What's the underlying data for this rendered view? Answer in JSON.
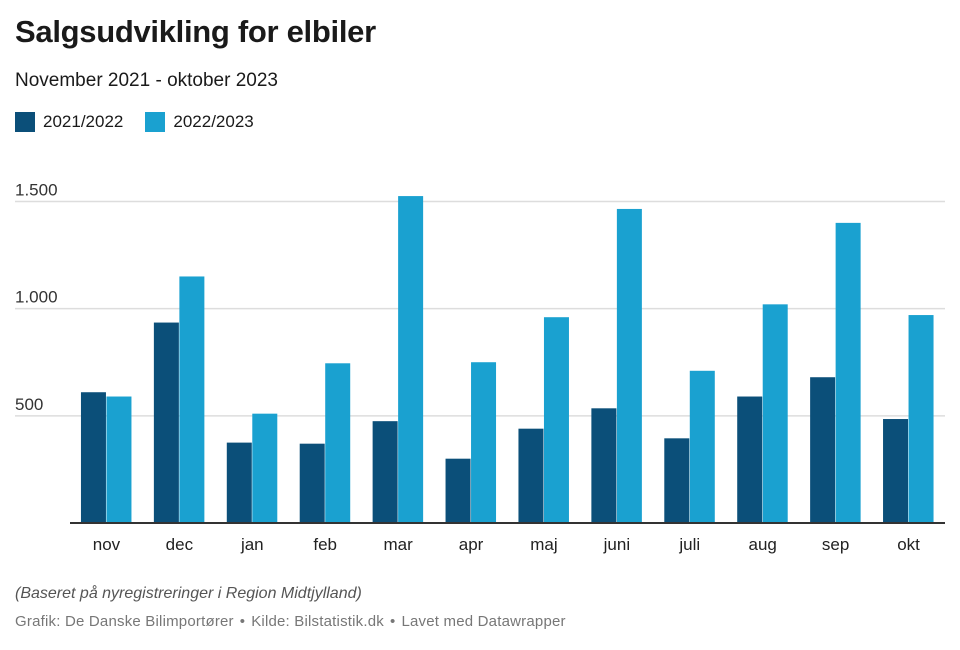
{
  "title": "Salgsudvikling for elbiler",
  "subtitle": "November 2021 - oktober 2023",
  "note": "(Baseret på nyregistreringer i Region Midtjylland)",
  "footer": {
    "graphic": "Grafik: De Danske Bilimportører",
    "source": "Kilde: Bilstatistik.dk",
    "made_with": "Lavet med Datawrapper",
    "separator": "•"
  },
  "colors": {
    "series1": "#0b4f79",
    "series2": "#1aa1d0",
    "grid": "#dddddd",
    "axis": "#333333"
  },
  "chart_data": {
    "type": "bar",
    "categories": [
      "nov",
      "dec",
      "jan",
      "feb",
      "mar",
      "apr",
      "maj",
      "juni",
      "juli",
      "aug",
      "sep",
      "okt"
    ],
    "series": [
      {
        "name": "2021/2022",
        "values": [
          610,
          935,
          375,
          370,
          475,
          300,
          440,
          535,
          395,
          590,
          680,
          485
        ]
      },
      {
        "name": "2022/2023",
        "values": [
          590,
          1150,
          510,
          745,
          1525,
          750,
          960,
          1465,
          710,
          1020,
          1400,
          970
        ]
      }
    ],
    "yticks": [
      "500",
      "1.000",
      "1.500"
    ],
    "ytick_values": [
      500,
      1000,
      1500
    ],
    "ylim": [
      0,
      1600
    ],
    "grid": true,
    "legend_position": "top-left"
  }
}
